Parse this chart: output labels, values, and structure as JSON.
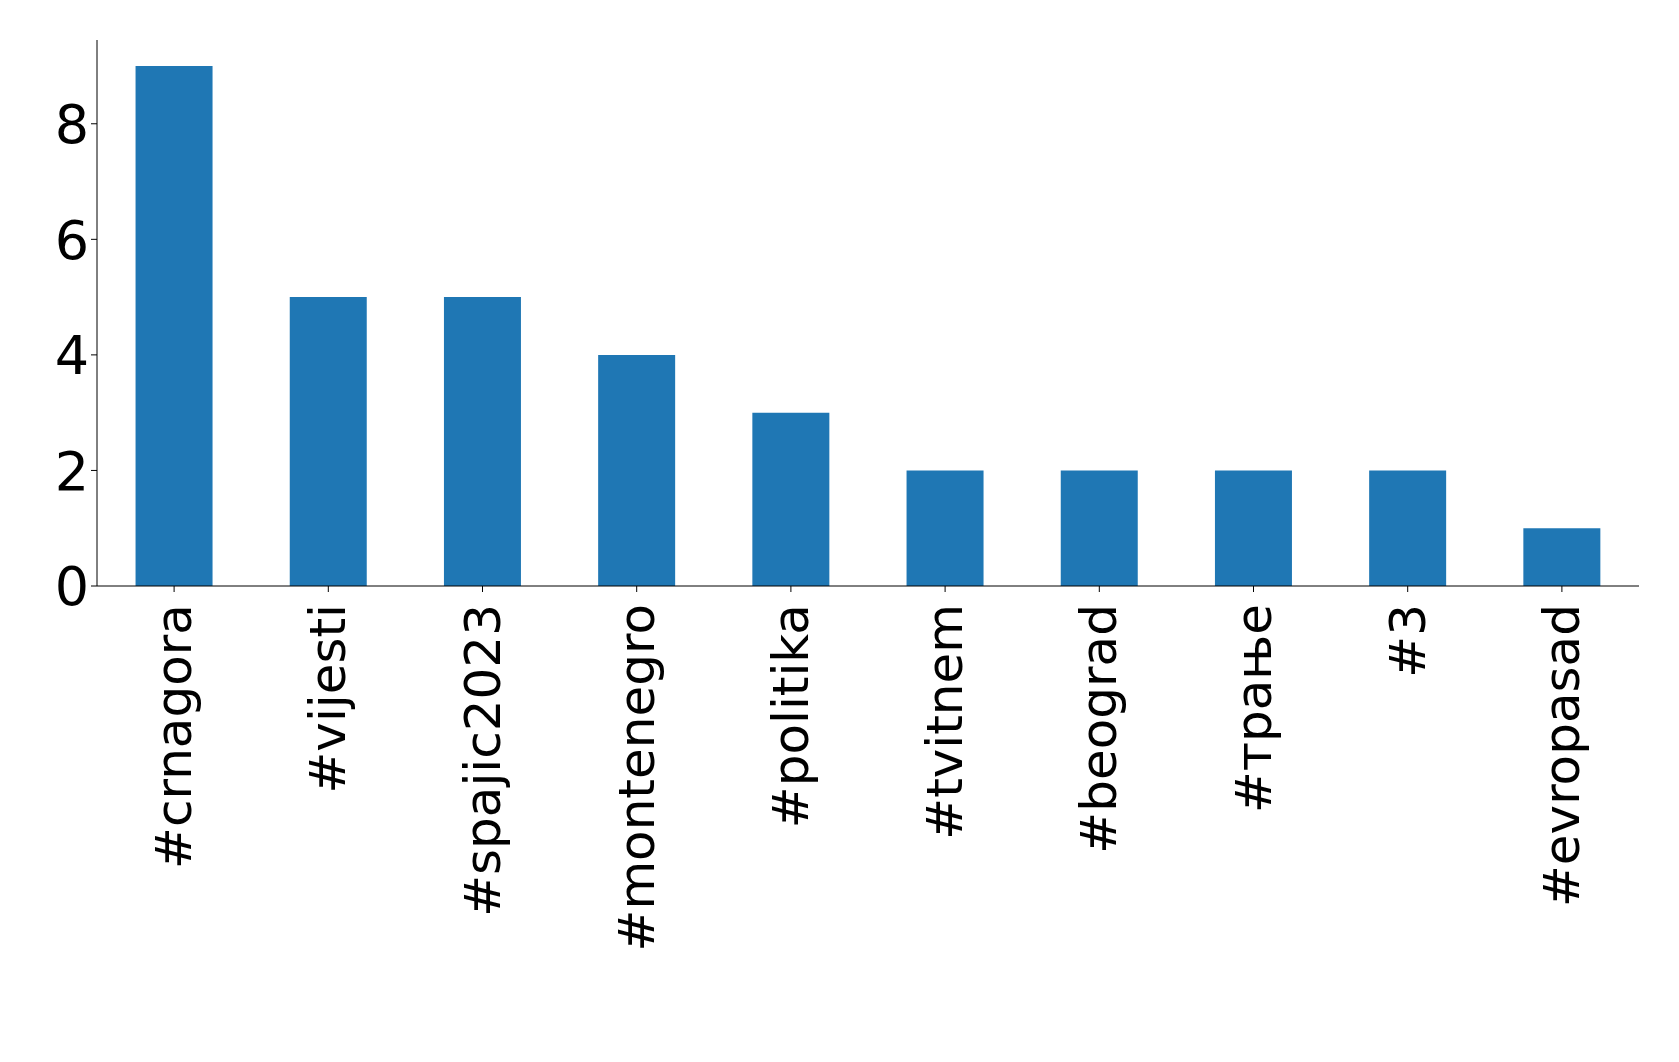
{
  "chart_data": {
    "type": "bar",
    "categories": [
      "#crnagora",
      "#vijesti",
      "#spajic2023",
      "#montenegro",
      "#politika",
      "#tvitnem",
      "#beograd",
      "#трање",
      "#3",
      "#evropasad"
    ],
    "values": [
      9,
      5,
      5,
      4,
      3,
      2,
      2,
      2,
      2,
      1
    ],
    "color": "#1f77b4",
    "ylim": [
      0,
      9.45
    ],
    "yticks": [
      0,
      2,
      4,
      6,
      8
    ]
  }
}
